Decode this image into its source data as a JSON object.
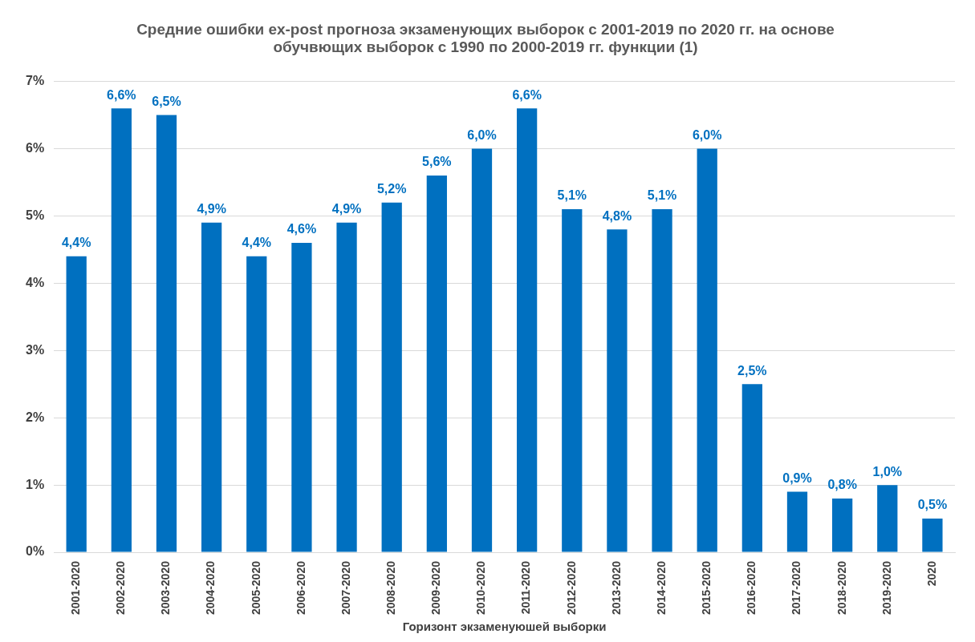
{
  "chart_data": {
    "type": "bar",
    "title": "Средние ошибки ex-post прогноза экзаменующих выборок с 2001-2019 по 2020 гг. на основе\nобучвющих выборок с 1990 по 2000-2019 гг. функции (1)",
    "xlabel": "Горизонт экзаменуюшей выборки",
    "categories": [
      "2001-2020",
      "2002-2020",
      "2003-2020",
      "2004-2020",
      "2005-2020",
      "2006-2020",
      "2007-2020",
      "2008-2020",
      "2009-2020",
      "2010-2020",
      "2011-2020",
      "2012-2020",
      "2013-2020",
      "2014-2020",
      "2015-2020",
      "2016-2020",
      "2017-2020",
      "2018-2020",
      "2019-2020",
      "2020"
    ],
    "values": [
      4.4,
      6.6,
      6.5,
      4.9,
      4.4,
      4.6,
      4.9,
      5.2,
      5.6,
      6.0,
      6.6,
      5.1,
      4.8,
      5.1,
      6.0,
      2.5,
      0.9,
      0.8,
      1.0,
      0.5
    ],
    "value_labels": [
      "4,4%",
      "6,6%",
      "6,5%",
      "4,9%",
      "4,4%",
      "4,6%",
      "4,9%",
      "5,2%",
      "5,6%",
      "6,0%",
      "6,6%",
      "5,1%",
      "4,8%",
      "5,1%",
      "6,0%",
      "2,5%",
      "0,9%",
      "0,8%",
      "1,0%",
      "0,5%"
    ],
    "color": "#0070c0",
    "ylim": [
      0,
      7
    ],
    "yticks": [
      {
        "value": 0,
        "label": "0%"
      },
      {
        "value": 1,
        "label": "1%"
      },
      {
        "value": 2,
        "label": "2%"
      },
      {
        "value": 3,
        "label": "3%"
      },
      {
        "value": 4,
        "label": "4%"
      },
      {
        "value": 5,
        "label": "5%"
      },
      {
        "value": 6,
        "label": "6%"
      },
      {
        "value": 7,
        "label": "7%"
      }
    ],
    "grid": "y",
    "legend": false
  }
}
